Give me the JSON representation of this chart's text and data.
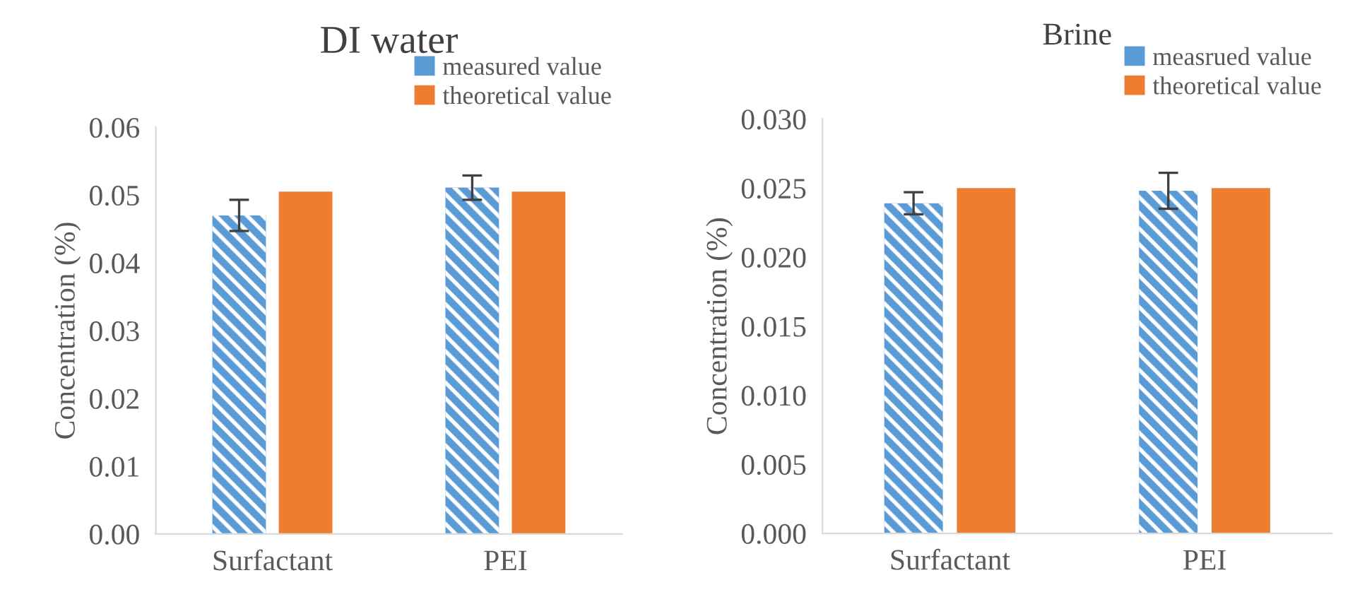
{
  "chart_data": [
    {
      "type": "bar",
      "title": "DI water",
      "ylabel": "Concentration (%)",
      "categories": [
        "Surfactant",
        "PEI"
      ],
      "ylim": [
        0,
        0.06
      ],
      "yticks": [
        {
          "value": 0,
          "label": "0.00"
        },
        {
          "value": 0.01,
          "label": "0.01"
        },
        {
          "value": 0.02,
          "label": "0.02"
        },
        {
          "value": 0.03,
          "label": "0.03"
        },
        {
          "value": 0.04,
          "label": "0.04"
        },
        {
          "value": 0.05,
          "label": "0.05"
        },
        {
          "value": 0.06,
          "label": "0.06"
        }
      ],
      "grid": false,
      "legend": "top right",
      "series": [
        {
          "name": "measured value",
          "color": "#5b9bd5",
          "values": [
            0.047,
            0.0511
          ],
          "errors": [
            0.0023,
            0.0018
          ]
        },
        {
          "name": "theoretical value",
          "color": "#ed7d31",
          "values": [
            0.0505,
            0.0505
          ]
        }
      ]
    },
    {
      "type": "bar",
      "title": "Brine",
      "ylabel": "Concentration (%)",
      "categories": [
        "Surfactant",
        "PEI"
      ],
      "ylim": [
        0,
        0.03
      ],
      "yticks": [
        {
          "value": 0,
          "label": "0.000"
        },
        {
          "value": 0.005,
          "label": "0.005"
        },
        {
          "value": 0.01,
          "label": "0.010"
        },
        {
          "value": 0.015,
          "label": "0.015"
        },
        {
          "value": 0.02,
          "label": "0.020"
        },
        {
          "value": 0.025,
          "label": "0.025"
        },
        {
          "value": 0.03,
          "label": "0.030"
        }
      ],
      "grid": false,
      "legend": "top right",
      "series": [
        {
          "name": "measrued value",
          "color": "#5b9bd5",
          "values": [
            0.0239,
            0.0248
          ],
          "errors": [
            0.0008,
            0.0013
          ]
        },
        {
          "name": "theoretical value",
          "color": "#ed7d31",
          "values": [
            0.025,
            0.025
          ]
        }
      ]
    }
  ]
}
